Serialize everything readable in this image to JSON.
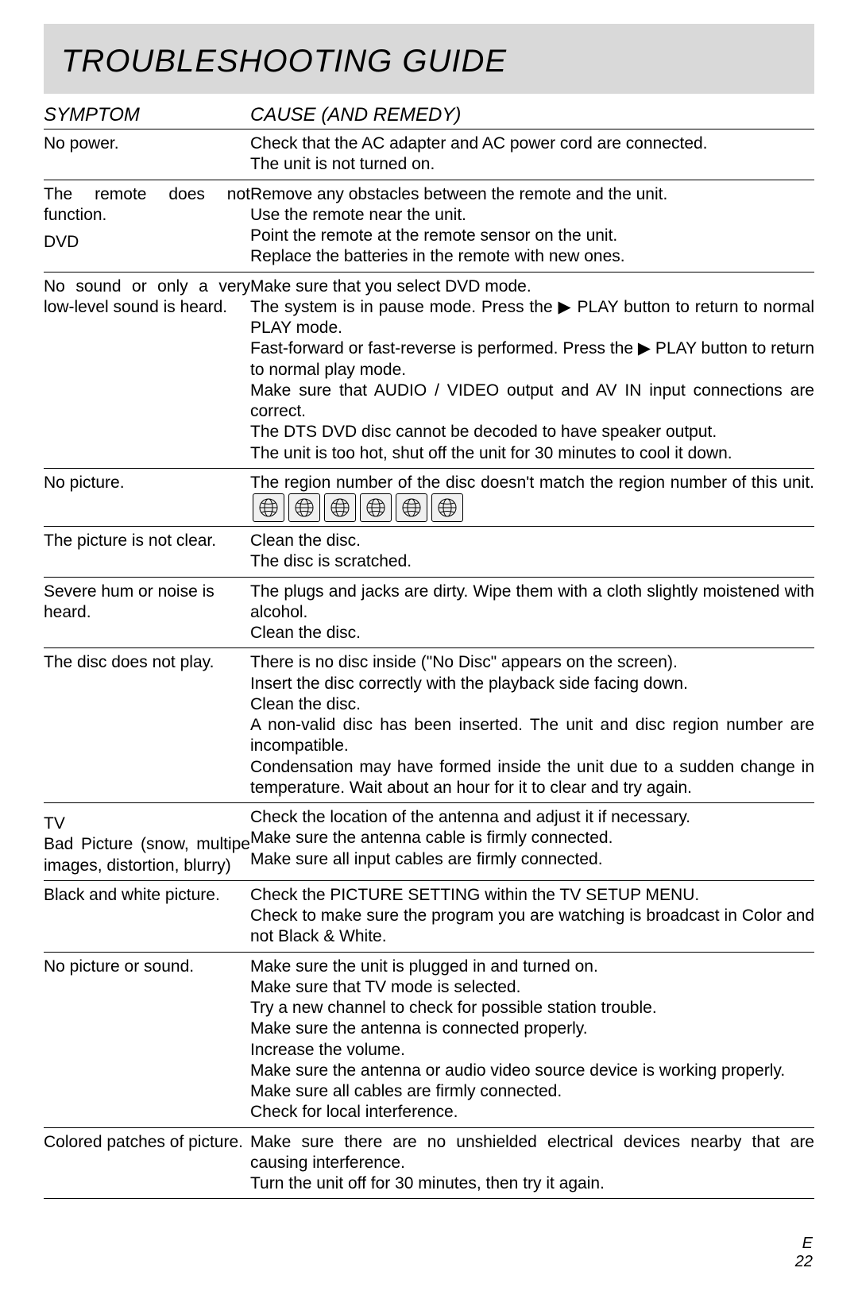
{
  "page": {
    "title": "TROUBLESHOOTING GUIDE",
    "header_symptom": "SYMPTOM",
    "header_cause": "CAUSE (AND REMEDY)",
    "footer_lang": "E",
    "footer_page": "22",
    "banner_bg": "#d9d9d9",
    "icon_bg": "#f0f0f0",
    "icon_border": "#000000",
    "rule_color": "#000000",
    "region_icon_count": 6
  },
  "rows": [
    {
      "symptom": "No power.",
      "cause": "Check that the AC adapter and AC power cord are connected.\nThe unit is not turned on.",
      "symptom_justify": false
    },
    {
      "symptom": "The remote does not function.",
      "cause": "Remove any obstacles between the remote and the unit.\nUse the remote near the unit.\nPoint the remote at the remote sensor on the unit.\nReplace the batteries in the remote with new ones.",
      "section_after": "DVD",
      "symptom_justify": true
    },
    {
      "symptom": "No sound or only a very low-level sound is heard.",
      "cause": "Make sure that you select DVD mode.\nThe system is in pause mode. Press the ▶ PLAY button to return to normal PLAY mode.\nFast-forward or fast-reverse is performed. Press the ▶ PLAY button to return to normal play mode.\nMake sure that AUDIO / VIDEO output and AV IN input connections are correct.\nThe DTS DVD disc cannot be decoded to have speaker output.\nThe unit is too hot, shut off the unit for 30 minutes to cool it down.",
      "symptom_justify": true,
      "cause_justify": true
    },
    {
      "symptom": "No picture.",
      "cause_pre": "The region number of the disc doesn't match the region number of this unit.",
      "has_region_icons": true,
      "symptom_justify": false,
      "cause_justify": true
    },
    {
      "symptom": "The picture is not clear.",
      "cause": "Clean the disc.\nThe disc is scratched.",
      "symptom_justify": false
    },
    {
      "symptom": "Severe hum or noise is heard.",
      "cause": "The plugs and jacks are dirty. Wipe them with a cloth slightly moistened with alcohol.\nClean the disc.",
      "symptom_justify": false,
      "cause_justify": true
    },
    {
      "symptom": "The disc does not play.",
      "cause": "There is no disc inside (\"No Disc\" appears on the screen).\nInsert the disc correctly with the playback side facing down.\nClean the disc.\nA non-valid disc has been inserted. The unit and disc region number are incompatible.\nCondensation may have formed inside the unit due to a sudden change in temperature. Wait about an hour for it to clear and try again.",
      "symptom_justify": false,
      "cause_justify": true
    },
    {
      "section_before": "TV",
      "symptom": "Bad Picture (snow, multipe images, distortion, blurry)",
      "cause": "Check the location of the antenna and adjust it if necessary.\nMake sure the antenna cable is firmly connected.\nMake sure all input cables are firmly connected.",
      "symptom_justify": true
    },
    {
      "symptom": "Black and white picture.",
      "cause": "Check the PICTURE SETTING within the TV SETUP MENU.\nCheck to make sure the program you are watching is broadcast in Color and not Black & White.",
      "symptom_justify": false,
      "cause_justify": true
    },
    {
      "symptom": "No picture or sound.",
      "cause": "Make sure the unit is plugged in and turned on.\nMake sure that TV mode is selected.\nTry a new channel to check for possible station trouble.\nMake sure the antenna is connected properly.\nIncrease the volume.\nMake sure the antenna or audio video source device is working properly.\nMake sure all cables are firmly connected.\nCheck for local interference.",
      "symptom_justify": false
    },
    {
      "symptom": "Colored patches of picture.",
      "cause": "Make sure there are no unshielded electrical devices nearby that are causing interference.\nTurn the unit off for 30 minutes, then try it again.",
      "symptom_justify": true,
      "cause_justify": true
    }
  ]
}
